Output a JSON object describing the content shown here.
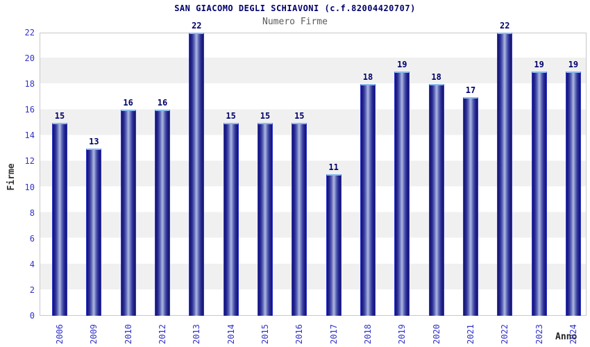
{
  "header": {
    "title": "SAN GIACOMO DEGLI SCHIAVONI (c.f.82004420707)",
    "subtitle": "Numero Firme"
  },
  "chart_data": {
    "type": "bar",
    "title": "SAN GIACOMO DEGLI SCHIAVONI (c.f.82004420707)",
    "subtitle": "Numero Firme",
    "categories": [
      "2006",
      "2009",
      "2010",
      "2012",
      "2013",
      "2014",
      "2015",
      "2016",
      "2017",
      "2018",
      "2019",
      "2020",
      "2021",
      "2022",
      "2023",
      "2024"
    ],
    "values": [
      15,
      13,
      16,
      16,
      22,
      15,
      15,
      15,
      11,
      18,
      19,
      18,
      17,
      22,
      19,
      19
    ],
    "xlabel": "Anno",
    "ylabel": "Firme",
    "ylim": [
      0,
      22
    ],
    "ytick_step": 2,
    "grid": "horizontal-bands-alternating",
    "legend_position": "none",
    "value_labels": "above-bars"
  },
  "colors": {
    "title_text": "#00006b",
    "subtitle_text": "#5a5a5a",
    "tick_label": "#3232c8",
    "value_label": "#000069",
    "axis_title": "#333333",
    "bar_edge_dark": "#14146c",
    "bar_center_light": "#aeb8e6",
    "bar_top_cap": "#8cbcee",
    "band_gray": "#f0f0f0",
    "plot_border": "#c8c8c8",
    "background": "#ffffff"
  }
}
